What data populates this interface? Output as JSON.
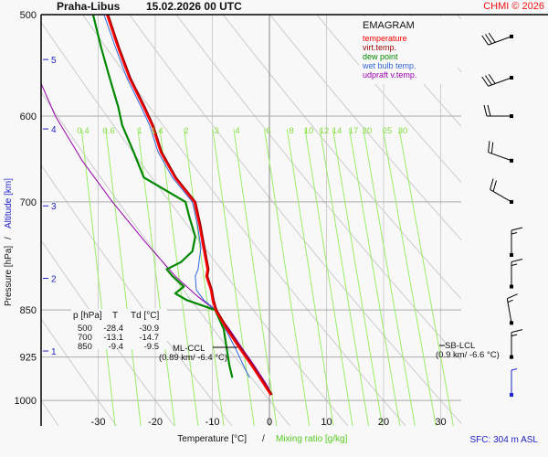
{
  "header": {
    "station": "Praha-Libus",
    "datetime": "15.02.2026 00 UTC",
    "copyright": "CHMI © 2026"
  },
  "colors": {
    "temperature": "#ff0000",
    "virt_temp": "#990000",
    "dew_point": "#008800",
    "wet_bulb": "#3366dd",
    "updraft": "#9900aa",
    "mixing_ratio": "#99ee66",
    "altitude": "#2222cc",
    "grid": "#aaaaaa",
    "dry_adiabat": "#cccccc"
  },
  "chart_data": {
    "type": "line",
    "title": "EMAGRAM",
    "xlabel": "Temperature [°C]",
    "xlabel2": "Mixing ratio [g/kg]",
    "xlabel_sep": "/",
    "ylabel": "Pressure [hPa]",
    "ylabel2": "Altitude [km]",
    "ylabel_sep": "/",
    "xlim": [
      -40,
      33
    ],
    "ylim": [
      1000,
      500
    ],
    "x_ticks": [
      -30,
      -20,
      -10,
      0,
      10,
      20,
      30
    ],
    "x_tick_labels": [
      "-30",
      "-20",
      "-10",
      "0",
      "10",
      "20",
      "30"
    ],
    "pressure_ticks": [
      500,
      600,
      700,
      850,
      925,
      1000
    ],
    "pressure_tick_labels": [
      "500",
      "600",
      "700",
      "850",
      "925",
      "1000"
    ],
    "altitude_ticks_km": [
      {
        "km": 5,
        "p": 542
      },
      {
        "km": 4,
        "p": 614
      },
      {
        "km": 3,
        "p": 705
      },
      {
        "km": 2,
        "p": 803
      },
      {
        "km": 1,
        "p": 915
      }
    ],
    "mixing_ratio_labels": [
      "0.4",
      "0.6",
      "1",
      "1.4",
      "2",
      "3",
      "4",
      "6",
      "8",
      "10",
      "12",
      "14",
      "17",
      "20",
      "25",
      "30"
    ],
    "mixing_ratio_values": [
      0.4,
      0.6,
      1,
      1.4,
      2,
      3,
      4,
      6,
      8,
      10,
      12,
      14,
      17,
      20,
      25,
      30
    ],
    "legend": {
      "position": "top-right",
      "title": "EMAGRAM",
      "entries": [
        {
          "label": "temperature",
          "key": "temperature"
        },
        {
          "label": "virt.temp.",
          "key": "virt_temp"
        },
        {
          "label": "dew point",
          "key": "dew_point"
        },
        {
          "label": "wet bulb temp.",
          "key": "wet_bulb"
        },
        {
          "label": "udpraft v.temp.",
          "key": "updraft"
        }
      ]
    },
    "series": [
      {
        "name": "temperature",
        "points": [
          [
            500,
            -28.4
          ],
          [
            530,
            -26.5
          ],
          [
            560,
            -24.5
          ],
          [
            590,
            -22.0
          ],
          [
            610,
            -20.5
          ],
          [
            640,
            -19.0
          ],
          [
            670,
            -16.5
          ],
          [
            700,
            -13.1
          ],
          [
            730,
            -12.2
          ],
          [
            760,
            -11.5
          ],
          [
            790,
            -10.8
          ],
          [
            800,
            -11.0
          ],
          [
            820,
            -10.2
          ],
          [
            835,
            -9.9
          ],
          [
            850,
            -9.4
          ],
          [
            880,
            -7.4
          ],
          [
            910,
            -5.2
          ],
          [
            940,
            -3.0
          ],
          [
            970,
            -1.0
          ],
          [
            990,
            0.3
          ]
        ]
      },
      {
        "name": "virt.temp.",
        "points": [
          [
            500,
            -28.2
          ],
          [
            530,
            -26.3
          ],
          [
            560,
            -24.3
          ],
          [
            590,
            -21.8
          ],
          [
            610,
            -20.3
          ],
          [
            640,
            -18.8
          ],
          [
            670,
            -16.3
          ],
          [
            700,
            -12.9
          ],
          [
            730,
            -12.0
          ],
          [
            760,
            -11.3
          ],
          [
            790,
            -10.6
          ],
          [
            800,
            -10.8
          ],
          [
            820,
            -10.0
          ],
          [
            835,
            -9.7
          ],
          [
            850,
            -9.2
          ],
          [
            880,
            -7.2
          ],
          [
            910,
            -5.0
          ],
          [
            940,
            -2.8
          ],
          [
            970,
            -0.8
          ],
          [
            990,
            0.5
          ]
        ]
      },
      {
        "name": "dew point",
        "points": [
          [
            500,
            -30.9
          ],
          [
            530,
            -29.5
          ],
          [
            560,
            -28.0
          ],
          [
            590,
            -26.5
          ],
          [
            610,
            -25.8
          ],
          [
            640,
            -23.8
          ],
          [
            670,
            -22.0
          ],
          [
            700,
            -14.7
          ],
          [
            720,
            -14.0
          ],
          [
            745,
            -13.0
          ],
          [
            765,
            -13.5
          ],
          [
            780,
            -15.5
          ],
          [
            790,
            -18.0
          ],
          [
            800,
            -17.0
          ],
          [
            815,
            -15.0
          ],
          [
            825,
            -16.5
          ],
          [
            835,
            -14.5
          ],
          [
            850,
            -9.5
          ],
          [
            880,
            -8.0
          ],
          [
            910,
            -7.5
          ],
          [
            940,
            -7.0
          ],
          [
            960,
            -6.5
          ]
        ]
      },
      {
        "name": "wet bulb temp.",
        "points": [
          [
            500,
            -29.0
          ],
          [
            530,
            -27.0
          ],
          [
            560,
            -25.0
          ],
          [
            590,
            -22.5
          ],
          [
            610,
            -21.0
          ],
          [
            640,
            -19.5
          ],
          [
            670,
            -17.0
          ],
          [
            700,
            -13.5
          ],
          [
            730,
            -12.6
          ],
          [
            760,
            -12.0
          ],
          [
            790,
            -12.5
          ],
          [
            800,
            -13.0
          ],
          [
            820,
            -12.8
          ],
          [
            835,
            -11.5
          ],
          [
            850,
            -9.4
          ],
          [
            880,
            -7.7
          ],
          [
            910,
            -6.0
          ],
          [
            940,
            -4.5
          ],
          [
            960,
            -3.5
          ]
        ]
      },
      {
        "name": "udpraft v.temp.",
        "points": [
          [
            540,
            -42.0
          ],
          [
            600,
            -37.5
          ],
          [
            650,
            -32.8
          ],
          [
            700,
            -27.5
          ],
          [
            750,
            -22.0
          ],
          [
            800,
            -16.5
          ],
          [
            830,
            -12.5
          ],
          [
            850,
            -9.5
          ],
          [
            880,
            -7.0
          ],
          [
            910,
            -4.8
          ],
          [
            940,
            -2.6
          ],
          [
            970,
            -0.6
          ],
          [
            990,
            0.5
          ]
        ]
      }
    ],
    "station_table": {
      "headers": [
        "p [hPa]",
        "T",
        "Td [°C]"
      ],
      "rows": [
        [
          "500",
          "-28.4",
          "-30.9"
        ],
        [
          "700",
          "-13.1",
          "-14.7"
        ],
        [
          "850",
          "-9.4",
          "-9.5"
        ]
      ]
    },
    "annotations": [
      {
        "name": "ML-CCL",
        "label": "ML-CCL",
        "detail": "(0.89 km/ -6.4 °C)",
        "p": 893
      },
      {
        "name": "SB-LCL",
        "label": "SB-LCL",
        "detail": "(0.9 km/ -6.6 °C)",
        "p": 886
      }
    ],
    "wind_barbs": [
      {
        "p": 520,
        "direction_deg": 250,
        "speed_kt": 30
      },
      {
        "p": 560,
        "direction_deg": 250,
        "speed_kt": 30
      },
      {
        "p": 600,
        "direction_deg": 270,
        "speed_kt": 20
      },
      {
        "p": 650,
        "direction_deg": 290,
        "speed_kt": 20
      },
      {
        "p": 700,
        "direction_deg": 300,
        "speed_kt": 20
      },
      {
        "p": 770,
        "direction_deg": 360,
        "speed_kt": 15
      },
      {
        "p": 815,
        "direction_deg": 360,
        "speed_kt": 15
      },
      {
        "p": 870,
        "direction_deg": 350,
        "speed_kt": 15
      },
      {
        "p": 925,
        "direction_deg": 360,
        "speed_kt": 15
      },
      {
        "p": 990,
        "direction_deg": 360,
        "speed_kt": 5
      }
    ],
    "surface": "SFC: 304 m ASL"
  }
}
